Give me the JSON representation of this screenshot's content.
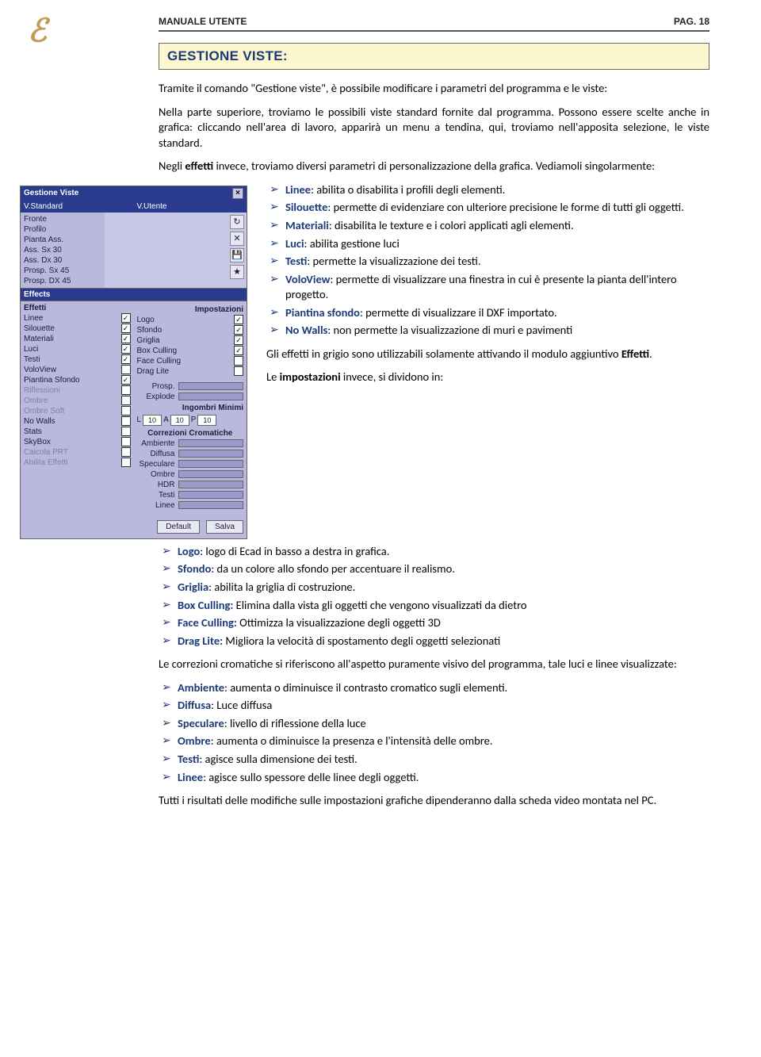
{
  "header": {
    "title": "MANUALE UTENTE",
    "page": "PAG. 18"
  },
  "section": {
    "title": "GESTIONE VISTE:"
  },
  "intro1": "Tramite il comando \"Gestione viste\", è possibile modificare i parametri del programma e le viste:",
  "intro2": "Nella parte superiore, troviamo le possibili viste standard fornite dal programma. Possono essere scelte anche in grafica: cliccando nell'area di lavoro, apparirà un menu a tendina, qui, troviamo nell'apposita selezione, le viste standard.",
  "intro3a": "Negli ",
  "intro3b": "effetti",
  "intro3c": " invece, troviamo diversi parametri di personalizzazione della grafica. Vediamoli singolarmente:",
  "effetti_list": [
    {
      "term": "Linee",
      "rest": ": abilita o disabilita i profili degli elementi."
    },
    {
      "term": "Silouette",
      "rest": ": permette di evidenziare con ulteriore precisione le forme di tutti gli oggetti."
    },
    {
      "term": "Materiali",
      "rest": ": disabilita le texture e i colori applicati agli elementi."
    },
    {
      "term": "Luci",
      "rest": ": abilita gestione luci"
    },
    {
      "term": "Testi",
      "rest": ": permette la visualizzazione dei testi."
    },
    {
      "term": "VoloView",
      "rest": ": permette di visualizzare una finestra in cui è presente la pianta dell'intero progetto."
    },
    {
      "term": "Piantina sfondo",
      "rest": ":  permette di visualizzare il DXF importato."
    },
    {
      "term": "No Walls",
      "rest": ": non permette la visualizzazione di muri e pavimenti"
    }
  ],
  "grey_note_a": "Gli effetti in grigio sono utilizzabili solamente attivando il modulo aggiuntivo ",
  "grey_note_b": "Effetti",
  "grey_note_c": ".",
  "imp_intro_a": "Le ",
  "imp_intro_b": "impostazioni",
  "imp_intro_c": " invece, si dividono in:",
  "imp_list": [
    {
      "term": "Logo",
      "rest": ": logo di Ecad in basso a destra in grafica."
    },
    {
      "term": "Sfondo",
      "rest": ": da un colore allo sfondo per accentuare il realismo."
    },
    {
      "term": "Griglia",
      "rest": ": abilita la griglia di costruzione."
    },
    {
      "term": "Box Culling:",
      "rest": " Elimina dalla vista gli oggetti che vengono visualizzati da dietro"
    },
    {
      "term": "Face Culling:",
      "rest": " Ottimizza la visualizzazione degli oggetti 3D"
    },
    {
      "term": "Drag Lite:",
      "rest": " Migliora la velocità di spostamento degli oggetti selezionati"
    }
  ],
  "cc_intro": "Le correzioni cromatiche si riferiscono all'aspetto puramente visivo del programma, tale luci e linee visualizzate:",
  "cc_list": [
    {
      "term": "Ambiente",
      "rest": ": aumenta o diminuisce il contrasto cromatico sugli elementi."
    },
    {
      "term": "Diffusa",
      "rest": ": Luce diffusa"
    },
    {
      "term": "Speculare",
      "rest": ": livello di riflessione della luce"
    },
    {
      "term": "Ombre",
      "rest": ": aumenta o diminuisce la presenza e l'intensità delle ombre."
    },
    {
      "term": "Testi",
      "rest": ": agisce sulla dimensione dei testi."
    },
    {
      "term": "Linee",
      "rest": ": agisce sullo spessore delle linee degli oggetti."
    }
  ],
  "closing": "Tutti i risultati delle modifiche sulle impostazioni grafiche dipenderanno dalla scheda video montata nel PC.",
  "panel": {
    "title": "Gestione Viste",
    "col1": "V.Standard",
    "col2": "V.Utente",
    "views": [
      "Fronte",
      "Profilo",
      "Pianta Ass.",
      "Ass. Sx 30",
      "Ass. Dx 30",
      "Prosp. Sx 45",
      "Prosp. DX 45"
    ],
    "effects_head": "Effects",
    "eff_head_l": "Effetti",
    "eff_head_r": "Impostazioni",
    "eff_left": [
      {
        "lbl": "Linee",
        "chk": true
      },
      {
        "lbl": "Silouette",
        "chk": true
      },
      {
        "lbl": "Materiali",
        "chk": true
      },
      {
        "lbl": "Luci",
        "chk": true
      },
      {
        "lbl": "Testi",
        "chk": true
      },
      {
        "lbl": "VoloView",
        "chk": false
      },
      {
        "lbl": "Piantina Sfondo",
        "chk": true
      },
      {
        "lbl": "Riflessioni",
        "chk": false,
        "grey": true
      },
      {
        "lbl": "Ombre",
        "chk": false,
        "grey": true
      },
      {
        "lbl": "Ombre Soft",
        "chk": false,
        "grey": true
      },
      {
        "lbl": "No Walls",
        "chk": false
      },
      {
        "lbl": "Stats",
        "chk": false
      },
      {
        "lbl": "SkyBox",
        "chk": false
      },
      {
        "lbl": "Calcola PRT",
        "chk": false,
        "grey": true
      },
      {
        "lbl": "Abilita Effetti",
        "chk": false,
        "grey": true
      }
    ],
    "eff_right": [
      {
        "lbl": "Logo",
        "chk": true
      },
      {
        "lbl": "Sfondo",
        "chk": true
      },
      {
        "lbl": "Griglia",
        "chk": true
      },
      {
        "lbl": "Box Culling",
        "chk": true
      },
      {
        "lbl": "Face Culling",
        "chk": false
      },
      {
        "lbl": "Drag Lite",
        "chk": false
      }
    ],
    "prosp": "Prosp.",
    "explode": "Explode",
    "ingombri_title": "Ingombri Minimi",
    "ing_L": "L",
    "ing_L_v": "10",
    "ing_A": "A",
    "ing_A_v": "10",
    "ing_P": "P",
    "ing_P_v": "10",
    "cc_title": "Correzioni  Cromatiche",
    "cc_rows": [
      "Ambiente",
      "Diffusa",
      "Speculare",
      "Ombre",
      "HDR",
      "Testi",
      "Linee"
    ],
    "btn_default": "Default",
    "btn_salva": "Salva"
  }
}
